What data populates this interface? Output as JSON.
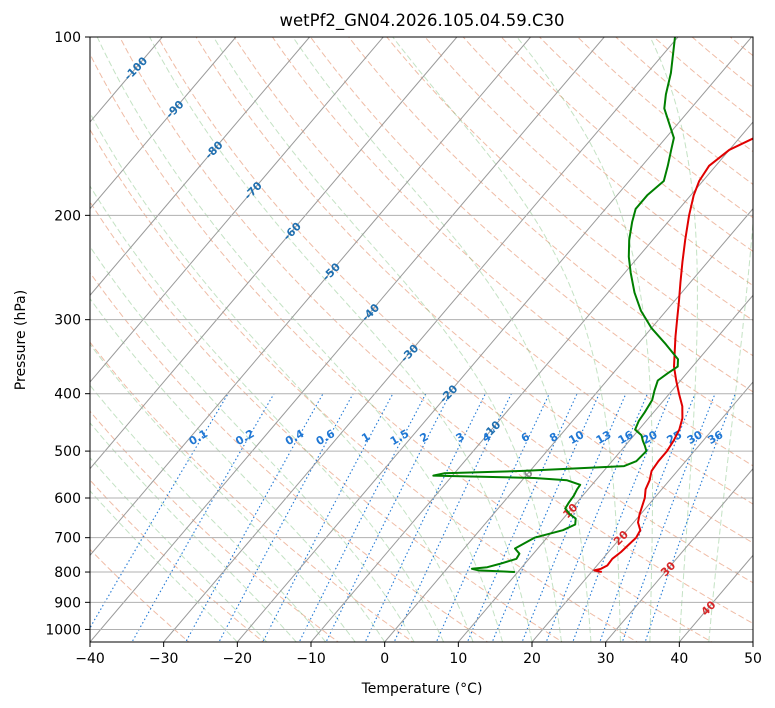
{
  "chart_data": {
    "type": "line",
    "title": "wetPf2_GN04.2026.105.04.59.C30",
    "xlabel": "Temperature (°C)",
    "ylabel": "Pressure (hPa)",
    "xlim": [
      -40,
      50
    ],
    "ylim": [
      1050,
      100
    ],
    "y_scale": "log",
    "grid": true,
    "x_ticks": [
      {
        "value": -40,
        "label": "−40"
      },
      {
        "value": -30,
        "label": "−30"
      },
      {
        "value": -20,
        "label": "−20"
      },
      {
        "value": -10,
        "label": "−10"
      },
      {
        "value": 0,
        "label": "0"
      },
      {
        "value": 10,
        "label": "10"
      },
      {
        "value": 20,
        "label": "20"
      },
      {
        "value": 30,
        "label": "30"
      },
      {
        "value": 40,
        "label": "40"
      },
      {
        "value": 50,
        "label": "50"
      }
    ],
    "y_ticks": [
      {
        "value": 100,
        "label": "100"
      },
      {
        "value": 200,
        "label": "200"
      },
      {
        "value": 300,
        "label": "300"
      },
      {
        "value": 400,
        "label": "400"
      },
      {
        "value": 500,
        "label": "500"
      },
      {
        "value": 600,
        "label": "600"
      },
      {
        "value": 700,
        "label": "700"
      },
      {
        "value": 800,
        "label": "800"
      },
      {
        "value": 900,
        "label": "900"
      },
      {
        "value": 1000,
        "label": "1000"
      }
    ],
    "isotherm_labels": [
      {
        "value": -100,
        "label": "-100"
      },
      {
        "value": -90,
        "label": "-90"
      },
      {
        "value": -80,
        "label": "-80"
      },
      {
        "value": -70,
        "label": "-70"
      },
      {
        "value": -60,
        "label": "-60"
      },
      {
        "value": -50,
        "label": "-50"
      },
      {
        "value": -40,
        "label": "-40"
      },
      {
        "value": -30,
        "label": "-30"
      },
      {
        "value": -20,
        "label": "-20"
      },
      {
        "value": -10,
        "label": "-10"
      },
      {
        "value": 0,
        "label": "0"
      },
      {
        "value": 10,
        "label": "10"
      },
      {
        "value": 20,
        "label": "20"
      },
      {
        "value": 30,
        "label": "30"
      },
      {
        "value": 40,
        "label": "40"
      }
    ],
    "mixing_ratio_labels": [
      "0.1",
      "0.2",
      "0.4",
      "0.6",
      "1",
      "1.5",
      "2",
      "3",
      "4",
      "6",
      "8",
      "10",
      "13",
      "16",
      "20",
      "25",
      "30",
      "36"
    ],
    "series": [
      {
        "color": "#e00000",
        "points": [
          [
            800,
            21.4
          ],
          [
            795,
            20.2
          ],
          [
            790,
            20.9
          ],
          [
            780,
            21.4
          ],
          [
            760,
            21.3
          ],
          [
            740,
            21.7
          ],
          [
            720,
            21.9
          ],
          [
            700,
            22.1
          ],
          [
            680,
            21.8
          ],
          [
            660,
            20.6
          ],
          [
            640,
            19.9
          ],
          [
            620,
            19.3
          ],
          [
            600,
            18.7
          ],
          [
            580,
            17.8
          ],
          [
            560,
            17.3
          ],
          [
            540,
            16.5
          ],
          [
            520,
            16.3
          ],
          [
            500,
            16.3
          ],
          [
            480,
            16.0
          ],
          [
            460,
            15.5
          ],
          [
            440,
            14.6
          ],
          [
            420,
            13.2
          ],
          [
            400,
            11.3
          ],
          [
            380,
            9.4
          ],
          [
            360,
            7.5
          ],
          [
            340,
            5.9
          ],
          [
            320,
            4.2
          ],
          [
            300,
            2.5
          ],
          [
            280,
            0.7
          ],
          [
            260,
            -1.3
          ],
          [
            240,
            -3.4
          ],
          [
            220,
            -5.6
          ],
          [
            200,
            -7.9
          ],
          [
            185,
            -9.6
          ],
          [
            175,
            -10.5
          ],
          [
            165,
            -10.9
          ],
          [
            155,
            -10.0
          ],
          [
            145,
            -7.1
          ],
          [
            135,
            -4.1
          ],
          [
            125,
            -3.3
          ],
          [
            115,
            -3.4
          ],
          [
            110,
            -2.0
          ],
          [
            105,
            1.9
          ],
          [
            100,
            4.4
          ]
        ]
      },
      {
        "color": "#007f00",
        "points": [
          [
            800,
            9.6
          ],
          [
            795,
            4.5
          ],
          [
            790,
            3.4
          ],
          [
            785,
            5.3
          ],
          [
            775,
            6.6
          ],
          [
            760,
            8.3
          ],
          [
            745,
            8.1
          ],
          [
            730,
            6.9
          ],
          [
            715,
            7.6
          ],
          [
            700,
            8.3
          ],
          [
            680,
            11.3
          ],
          [
            665,
            12.3
          ],
          [
            650,
            11.7
          ],
          [
            640,
            10.5
          ],
          [
            625,
            9.1
          ],
          [
            610,
            8.9
          ],
          [
            595,
            8.8
          ],
          [
            580,
            8.5
          ],
          [
            570,
            8.4
          ],
          [
            560,
            6.1
          ],
          [
            555,
            1.4
          ],
          [
            550,
            -12.6
          ],
          [
            545,
            -11.4
          ],
          [
            540,
            -0.9
          ],
          [
            530,
            12.2
          ],
          [
            520,
            13.3
          ],
          [
            510,
            13.4
          ],
          [
            500,
            13.5
          ],
          [
            490,
            12.7
          ],
          [
            480,
            11.8
          ],
          [
            470,
            11.0
          ],
          [
            460,
            9.5
          ],
          [
            445,
            9.0
          ],
          [
            430,
            8.8
          ],
          [
            410,
            8.4
          ],
          [
            395,
            7.6
          ],
          [
            380,
            6.9
          ],
          [
            370,
            7.4
          ],
          [
            360,
            8.0
          ],
          [
            350,
            7.2
          ],
          [
            330,
            3.8
          ],
          [
            310,
            0.0
          ],
          [
            290,
            -3.4
          ],
          [
            270,
            -6.4
          ],
          [
            250,
            -9.2
          ],
          [
            235,
            -11.3
          ],
          [
            220,
            -13.2
          ],
          [
            205,
            -14.9
          ],
          [
            195,
            -15.9
          ],
          [
            185,
            -15.9
          ],
          [
            175,
            -15.3
          ],
          [
            165,
            -16.5
          ],
          [
            155,
            -17.9
          ],
          [
            148,
            -18.9
          ],
          [
            140,
            -21.2
          ],
          [
            132,
            -23.6
          ],
          [
            125,
            -25.0
          ],
          [
            115,
            -26.8
          ],
          [
            100,
            -30.4
          ]
        ]
      }
    ]
  }
}
